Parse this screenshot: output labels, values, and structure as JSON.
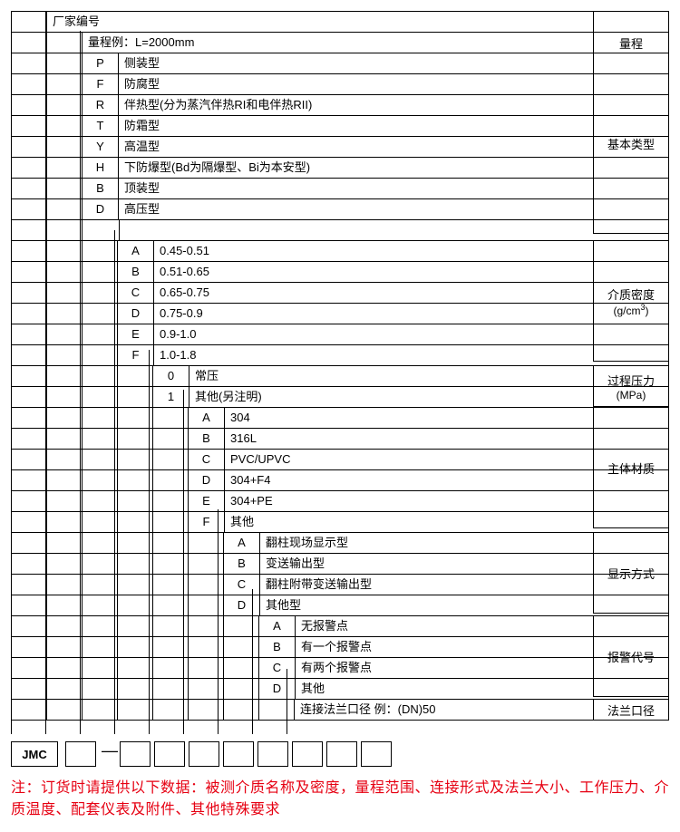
{
  "header": {
    "manufacturer_label": "厂家编号",
    "range_example": "量程例：L=2000mm",
    "range_label": "量程"
  },
  "sections": [
    {
      "label": "基本类型",
      "rows": [
        {
          "code": "P",
          "desc": "侧装型"
        },
        {
          "code": "F",
          "desc": "防腐型"
        },
        {
          "code": "R",
          "desc": "伴热型(分为蒸汽伴热RI和电伴热RII)"
        },
        {
          "code": "T",
          "desc": "防霜型"
        },
        {
          "code": "Y",
          "desc": "高温型"
        },
        {
          "code": "H",
          "desc": "下防爆型(Bd为隔爆型、Bi为本安型)"
        },
        {
          "code": "B",
          "desc": "顶装型"
        },
        {
          "code": "D",
          "desc": "高压型"
        },
        {
          "code": "",
          "desc": ""
        }
      ]
    },
    {
      "label": "介质密度",
      "sublabel": "(g/cm³)",
      "rows": [
        {
          "code": "A",
          "desc": "0.45-0.51"
        },
        {
          "code": "B",
          "desc": "0.51-0.65"
        },
        {
          "code": "C",
          "desc": "0.65-0.75"
        },
        {
          "code": "D",
          "desc": "0.75-0.9"
        },
        {
          "code": "E",
          "desc": "0.9-1.0"
        },
        {
          "code": "F",
          "desc": "1.0-1.8"
        }
      ]
    },
    {
      "label": "过程压力",
      "sublabel": "(MPa)",
      "rows": [
        {
          "code": "0",
          "desc": "常压"
        },
        {
          "code": "1",
          "desc": "其他(另注明)"
        }
      ]
    },
    {
      "label": "主体材质",
      "rows": [
        {
          "code": "A",
          "desc": "304"
        },
        {
          "code": "B",
          "desc": "316L"
        },
        {
          "code": "C",
          "desc": "PVC/UPVC"
        },
        {
          "code": "D",
          "desc": "304+F4"
        },
        {
          "code": "E",
          "desc": "304+PE"
        },
        {
          "code": "F",
          "desc": "其他"
        }
      ]
    },
    {
      "label": "显示方式",
      "rows": [
        {
          "code": "A",
          "desc": "翻柱现场显示型"
        },
        {
          "code": "B",
          "desc": "变送输出型"
        },
        {
          "code": "C",
          "desc": "翻柱附带变送输出型"
        },
        {
          "code": "D",
          "desc": "其他型"
        }
      ]
    },
    {
      "label": "报警代号",
      "rows": [
        {
          "code": "A",
          "desc": "无报警点"
        },
        {
          "code": "B",
          "desc": "有一个报警点"
        },
        {
          "code": "C",
          "desc": "有两个报警点"
        },
        {
          "code": "D",
          "desc": "其他"
        }
      ]
    },
    {
      "label": "法兰口径",
      "rows": [
        {
          "code": "",
          "desc": "连接法兰口径 例：(DN)50"
        }
      ]
    }
  ],
  "layout": {
    "content_width": 726,
    "label_col_width": 82,
    "code_col_width": 40,
    "indent_step": 38,
    "box_left_offsets": [
      14,
      74,
      130,
      168,
      206,
      244,
      282,
      320,
      358,
      396
    ],
    "box_x_centers": [
      34,
      92,
      148,
      186,
      224,
      262,
      300,
      338,
      376,
      414
    ],
    "line_color": "#000000"
  },
  "bottom": {
    "model_prefix": "JMC",
    "note": "注：订货时请提供以下数据：被测介质名称及密度，量程范围、连接形式及法兰大小、工作压力、介质温度、配套仪表及附件、其他特殊要求",
    "note_color": "#e60012"
  }
}
